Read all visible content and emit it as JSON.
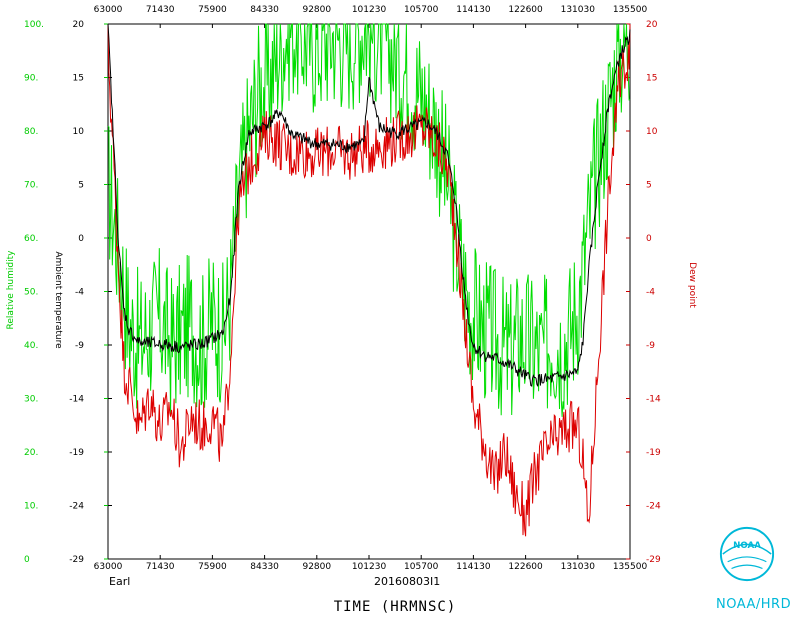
{
  "storm_label": "Earl",
  "flight_id": "20160803I1",
  "xlabel": "TIME (HRMNSC)",
  "branding": "NOAA/HRD",
  "logo_text": "NOAA",
  "colors": {
    "rh": "#00dd00",
    "temp": "#000000",
    "dew": "#dd0000",
    "axis": "#000000",
    "brand": "#00b8d8"
  },
  "chart_data": {
    "type": "line",
    "x_ticks": [
      "63000",
      "71430",
      "75900",
      "84330",
      "92800",
      "101230",
      "105700",
      "114130",
      "122600",
      "131030",
      "135500"
    ],
    "axes": {
      "rh": {
        "label": "Relative humidity",
        "ticks": [
          "100.",
          "90.",
          "80.",
          "70.",
          "60.",
          "50.",
          "40.",
          "30.",
          "20.",
          "10.",
          "0"
        ],
        "range": [
          0,
          100
        ]
      },
      "temp": {
        "label": "Ambient temperature",
        "ticks": [
          "20",
          "15",
          "10",
          "5",
          "0",
          "-4",
          "-9",
          "-14",
          "-19",
          "-24",
          "-29"
        ],
        "range": [
          -29,
          20
        ]
      },
      "dew": {
        "label": "Dew point",
        "ticks": [
          "20",
          "15",
          "10",
          "5",
          "0",
          "-4",
          "-9",
          "-14",
          "-19",
          "-24",
          "-29"
        ],
        "range": [
          -29,
          20
        ]
      }
    },
    "series": [
      {
        "key": "rh",
        "color": "#00dd00",
        "points": [
          [
            0,
            70
          ],
          [
            0.02,
            58
          ],
          [
            0.04,
            44
          ],
          [
            0.06,
            40
          ],
          [
            0.08,
            43
          ],
          [
            0.1,
            45
          ],
          [
            0.12,
            40
          ],
          [
            0.14,
            42
          ],
          [
            0.16,
            44
          ],
          [
            0.18,
            40
          ],
          [
            0.2,
            45
          ],
          [
            0.22,
            42
          ],
          [
            0.235,
            50
          ],
          [
            0.25,
            68
          ],
          [
            0.27,
            80
          ],
          [
            0.29,
            88
          ],
          [
            0.31,
            90
          ],
          [
            0.33,
            96
          ],
          [
            0.35,
            100
          ],
          [
            0.37,
            98
          ],
          [
            0.4,
            96
          ],
          [
            0.43,
            98
          ],
          [
            0.46,
            97
          ],
          [
            0.49,
            100
          ],
          [
            0.52,
            98
          ],
          [
            0.55,
            94
          ],
          [
            0.58,
            90
          ],
          [
            0.61,
            85
          ],
          [
            0.63,
            80
          ],
          [
            0.65,
            70
          ],
          [
            0.67,
            58
          ],
          [
            0.69,
            48
          ],
          [
            0.71,
            44
          ],
          [
            0.73,
            42
          ],
          [
            0.75,
            40
          ],
          [
            0.77,
            38
          ],
          [
            0.79,
            42
          ],
          [
            0.81,
            40
          ],
          [
            0.83,
            38
          ],
          [
            0.85,
            42
          ],
          [
            0.87,
            40
          ],
          [
            0.89,
            44
          ],
          [
            0.905,
            50
          ],
          [
            0.92,
            62
          ],
          [
            0.94,
            75
          ],
          [
            0.96,
            85
          ],
          [
            0.98,
            95
          ],
          [
            1.0,
            98
          ]
        ]
      },
      {
        "key": "temp",
        "color": "#000000",
        "points": [
          [
            0,
            20
          ],
          [
            0.01,
            10
          ],
          [
            0.02,
            0
          ],
          [
            0.03,
            -6
          ],
          [
            0.04,
            -8
          ],
          [
            0.06,
            -9.2
          ],
          [
            0.1,
            -9.3
          ],
          [
            0.14,
            -9.6
          ],
          [
            0.18,
            -9.3
          ],
          [
            0.22,
            -8.3
          ],
          [
            0.235,
            -5
          ],
          [
            0.25,
            5
          ],
          [
            0.27,
            10
          ],
          [
            0.29,
            10.5
          ],
          [
            0.31,
            11
          ],
          [
            0.33,
            12
          ],
          [
            0.35,
            10
          ],
          [
            0.37,
            9.5
          ],
          [
            0.4,
            9
          ],
          [
            0.43,
            9
          ],
          [
            0.46,
            8.8
          ],
          [
            0.49,
            9
          ],
          [
            0.5,
            15
          ],
          [
            0.52,
            10.5
          ],
          [
            0.55,
            10
          ],
          [
            0.58,
            10.5
          ],
          [
            0.61,
            11
          ],
          [
            0.63,
            10
          ],
          [
            0.65,
            8
          ],
          [
            0.665,
            4
          ],
          [
            0.68,
            -3
          ],
          [
            0.69,
            -7
          ],
          [
            0.7,
            -9.5
          ],
          [
            0.72,
            -10.3
          ],
          [
            0.74,
            -10.6
          ],
          [
            0.76,
            -11
          ],
          [
            0.78,
            -11.6
          ],
          [
            0.81,
            -12.6
          ],
          [
            0.84,
            -12.6
          ],
          [
            0.87,
            -12.3
          ],
          [
            0.9,
            -11.9
          ],
          [
            0.91,
            -9
          ],
          [
            0.92,
            -3
          ],
          [
            0.94,
            6
          ],
          [
            0.96,
            13
          ],
          [
            0.98,
            17
          ],
          [
            1.0,
            19
          ]
        ]
      },
      {
        "key": "dew",
        "color": "#dd0000",
        "points": [
          [
            0,
            18
          ],
          [
            0.01,
            8
          ],
          [
            0.02,
            -2
          ],
          [
            0.03,
            -11
          ],
          [
            0.04,
            -13
          ],
          [
            0.06,
            -17
          ],
          [
            0.08,
            -14
          ],
          [
            0.1,
            -17
          ],
          [
            0.12,
            -15
          ],
          [
            0.14,
            -19
          ],
          [
            0.16,
            -16
          ],
          [
            0.18,
            -17
          ],
          [
            0.2,
            -16
          ],
          [
            0.22,
            -19
          ],
          [
            0.235,
            -10
          ],
          [
            0.25,
            3
          ],
          [
            0.27,
            7
          ],
          [
            0.29,
            9
          ],
          [
            0.31,
            10
          ],
          [
            0.33,
            9
          ],
          [
            0.35,
            8
          ],
          [
            0.37,
            8.5
          ],
          [
            0.4,
            8
          ],
          [
            0.43,
            8.5
          ],
          [
            0.46,
            8
          ],
          [
            0.49,
            8.6
          ],
          [
            0.52,
            9
          ],
          [
            0.55,
            9.5
          ],
          [
            0.58,
            10
          ],
          [
            0.61,
            10.5
          ],
          [
            0.63,
            9
          ],
          [
            0.65,
            7
          ],
          [
            0.665,
            2
          ],
          [
            0.68,
            -6
          ],
          [
            0.69,
            -10
          ],
          [
            0.7,
            -15
          ],
          [
            0.72,
            -18
          ],
          [
            0.74,
            -22
          ],
          [
            0.76,
            -19
          ],
          [
            0.78,
            -23
          ],
          [
            0.8,
            -25
          ],
          [
            0.82,
            -21
          ],
          [
            0.84,
            -19
          ],
          [
            0.86,
            -18
          ],
          [
            0.88,
            -17
          ],
          [
            0.9,
            -17
          ],
          [
            0.91,
            -20
          ],
          [
            0.92,
            -26
          ],
          [
            0.94,
            -10
          ],
          [
            0.96,
            5
          ],
          [
            0.98,
            15
          ],
          [
            1.0,
            18
          ]
        ]
      }
    ]
  }
}
